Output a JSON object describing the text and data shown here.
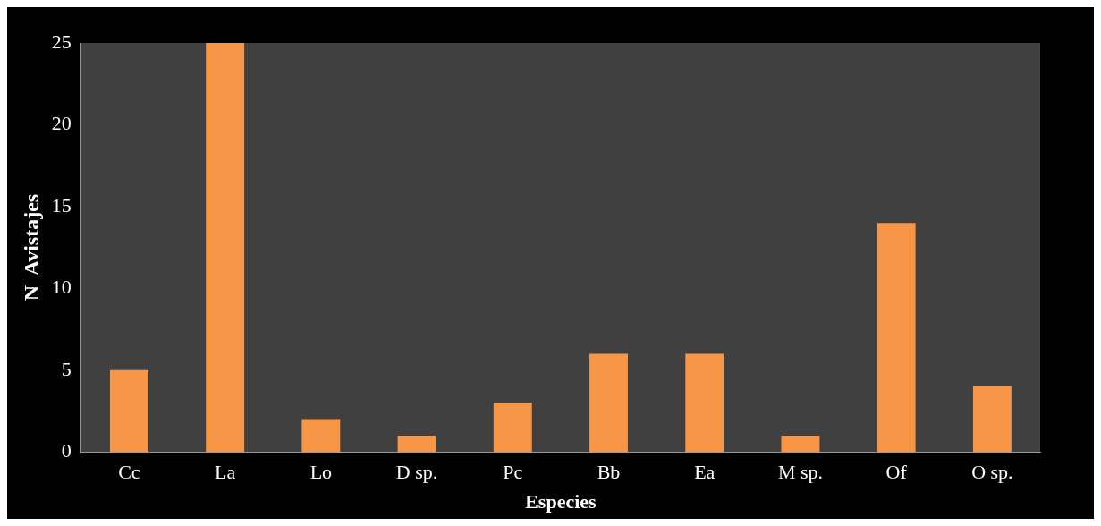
{
  "chart_data": {
    "type": "bar",
    "xlabel": "Especies",
    "ylabel": "N  Avistajes",
    "categories": [
      "Cc",
      "La",
      "Lo",
      "D sp.",
      "Pc",
      "Bb",
      "Ea",
      "M sp.",
      "Of",
      "O sp."
    ],
    "values": [
      5,
      25,
      2,
      1,
      3,
      6,
      6,
      1,
      14,
      4
    ],
    "color": "#f79646",
    "ylim": [
      0,
      25
    ],
    "yticks": [
      0,
      5,
      10,
      15,
      20,
      25
    ],
    "grid": false,
    "legend": false
  }
}
